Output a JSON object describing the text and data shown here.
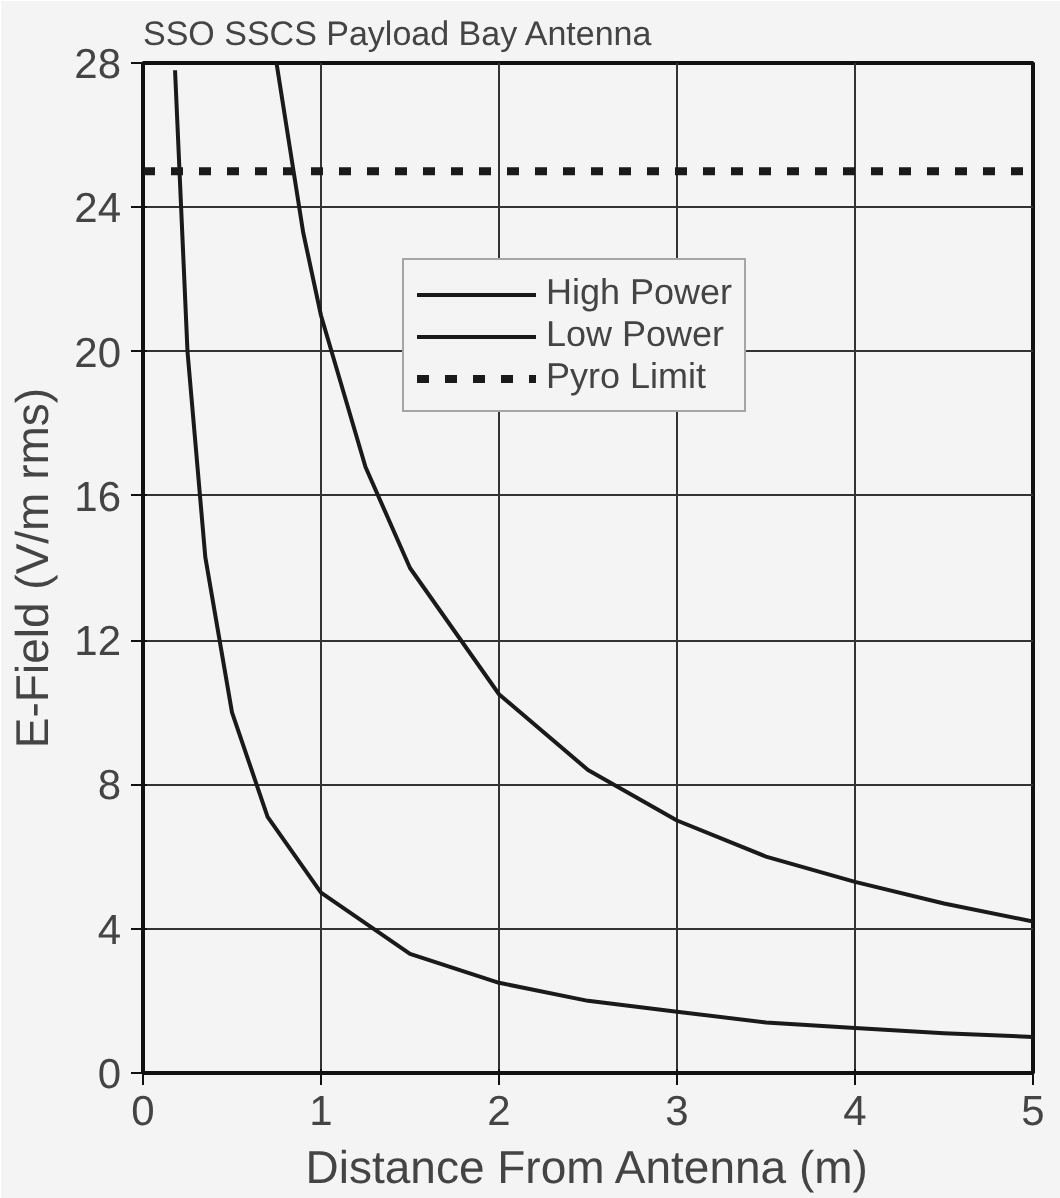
{
  "chart_data": {
    "type": "line",
    "title": "SSO SSCS Payload Bay Antenna",
    "xlabel": "Distance From Antenna (m)",
    "ylabel": "E-Field (V/m rms)",
    "xlim": [
      0,
      5
    ],
    "ylim": [
      0,
      28
    ],
    "xticks": [
      0,
      1,
      2,
      3,
      4,
      5
    ],
    "yticks": [
      0,
      4,
      8,
      12,
      16,
      20,
      24,
      28
    ],
    "grid": true,
    "legend": "top right",
    "marker": "none",
    "series": [
      {
        "name": "High Power",
        "color": "#1a1a1a",
        "line_style": "solid",
        "x": [
          0.75,
          0.9,
          1,
          1.25,
          1.5,
          2,
          2.5,
          3,
          3.5,
          4,
          4.5,
          5
        ],
        "values": [
          28,
          23.3,
          21,
          16.8,
          14,
          10.5,
          8.4,
          7,
          6,
          5.3,
          4.7,
          4.2
        ]
      },
      {
        "name": "Low Power",
        "color": "#1a1a1a",
        "line_style": "solid",
        "x": [
          0.18,
          0.25,
          0.35,
          0.5,
          0.7,
          1,
          1.5,
          2,
          2.5,
          3,
          3.5,
          4,
          4.5,
          5
        ],
        "values": [
          27.8,
          20,
          14.3,
          10,
          7.1,
          5,
          3.3,
          2.5,
          2,
          1.7,
          1.4,
          1.25,
          1.1,
          1
        ]
      },
      {
        "name": "Pyro Limit",
        "color": "#1a1a1a",
        "line_style": "dashed",
        "x": [
          0,
          5
        ],
        "values": [
          25,
          25
        ]
      }
    ]
  }
}
